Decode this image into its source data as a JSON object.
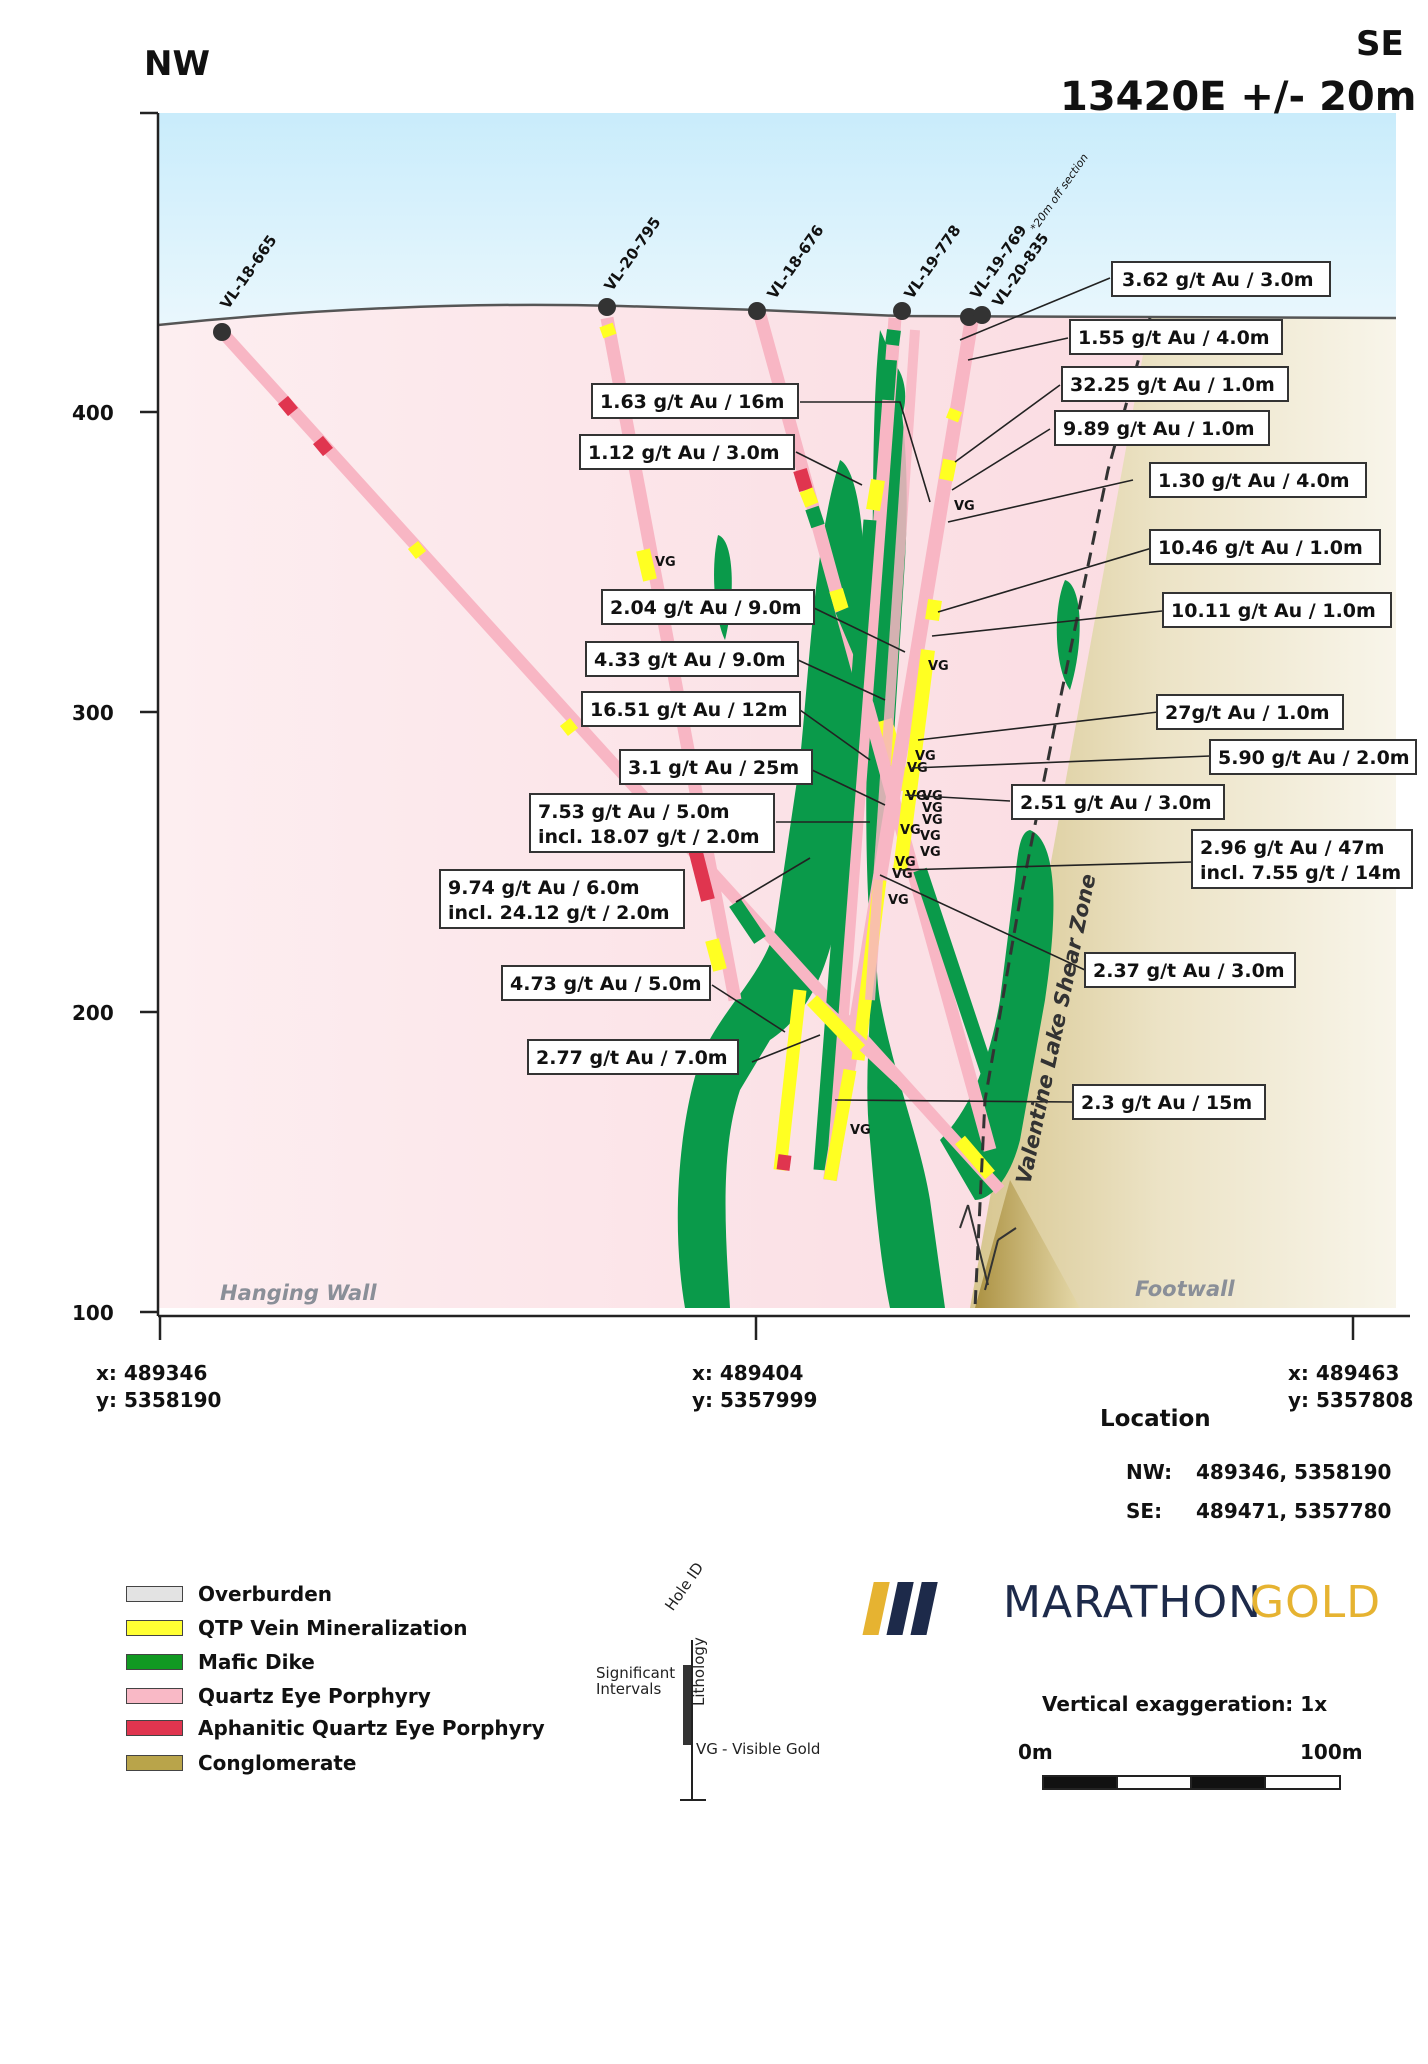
{
  "header": {
    "left": "NW",
    "right_top": "SE",
    "right_title": "13420E +/- 20m"
  },
  "axis": {
    "elevation_ticks": [
      "400",
      "300",
      "200",
      "100"
    ],
    "bottom_coords": [
      {
        "x": "x: 489346",
        "y": "y: 5358190"
      },
      {
        "x": "x: 489404",
        "y": "y: 5357999"
      },
      {
        "x": "x: 489463",
        "y": "y: 5357808"
      }
    ]
  },
  "holes": [
    "VL-18-665",
    "VL-20-795",
    "VL-18-676",
    "VL-19-778",
    "VL-19-769",
    "*20m off section",
    "VL-20-835"
  ],
  "intercepts": [
    [
      "3.62 g/t Au / 3.0m"
    ],
    [
      "1.55 g/t Au / 4.0m"
    ],
    [
      "32.25 g/t Au / 1.0m"
    ],
    [
      "9.89 g/t Au / 1.0m"
    ],
    [
      "1.30 g/t Au / 4.0m"
    ],
    [
      "10.46 g/t Au / 1.0m"
    ],
    [
      "10.11 g/t Au / 1.0m"
    ],
    [
      "27g/t Au / 1.0m"
    ],
    [
      "5.90 g/t Au / 2.0m"
    ],
    [
      "2.51 g/t Au / 3.0m"
    ],
    [
      "2.96 g/t Au / 47m",
      "incl. 7.55 g/t / 14m"
    ],
    [
      "2.37 g/t Au / 3.0m"
    ],
    [
      "2.3 g/t Au / 15m"
    ],
    [
      "1.63 g/t Au / 16m"
    ],
    [
      "1.12 g/t Au / 3.0m"
    ],
    [
      "2.04 g/t Au / 9.0m"
    ],
    [
      "4.33 g/t Au / 9.0m"
    ],
    [
      "16.51 g/t Au / 12m"
    ],
    [
      "3.1 g/t Au / 25m"
    ],
    [
      "7.53 g/t Au / 5.0m",
      "incl. 18.07 g/t / 2.0m"
    ],
    [
      "9.74 g/t Au / 6.0m",
      "incl. 24.12 g/t / 2.0m"
    ],
    [
      "4.73 g/t Au / 5.0m"
    ],
    [
      "2.77 g/t Au / 7.0m"
    ]
  ],
  "vg_label": "VG",
  "zones": {
    "hanging_wall": "Hanging Wall",
    "footwall": "Footwall",
    "shear_zone": "Valentine Lake Shear Zone"
  },
  "location": {
    "title": "Location",
    "nw_label": "NW:",
    "nw_value": "489346, 5358190",
    "se_label": "SE:",
    "se_value": "489471, 5357780"
  },
  "legend": [
    {
      "label": "Overburden",
      "color": "#e3e3e3"
    },
    {
      "label": "QTP Vein Mineralization",
      "color": "#ffff33"
    },
    {
      "label": "Mafic Dike",
      "color": "#119922"
    },
    {
      "label": "Quartz Eye Porphyry",
      "color": "#f9b9c6"
    },
    {
      "label": "Aphanitic Quartz Eye Porphyry",
      "color": "#e0354f"
    },
    {
      "label": "Conglomerate",
      "color": "#b9a44a"
    }
  ],
  "key": {
    "hole_id": "Hole ID",
    "sig_line1": "Significant",
    "sig_line2": "Intervals",
    "lithology": "Lithology",
    "vg": "VG",
    "vg_desc": "- Visible Gold"
  },
  "logo": {
    "word1": "MARATHON",
    "word2": "GOLD"
  },
  "scale": {
    "vertical_exaggeration": "Vertical exaggeration: 1x",
    "left": "0m",
    "right": "100m"
  },
  "colors": {
    "sky": "#bfe6f8",
    "host_rock": "#fbe4e8",
    "footwall": "#e8dcb8",
    "mafic": "#0a9a4a",
    "vein": "#ffff22",
    "porphyry": "#f8b6c4",
    "aphanitic": "#e0354f"
  }
}
